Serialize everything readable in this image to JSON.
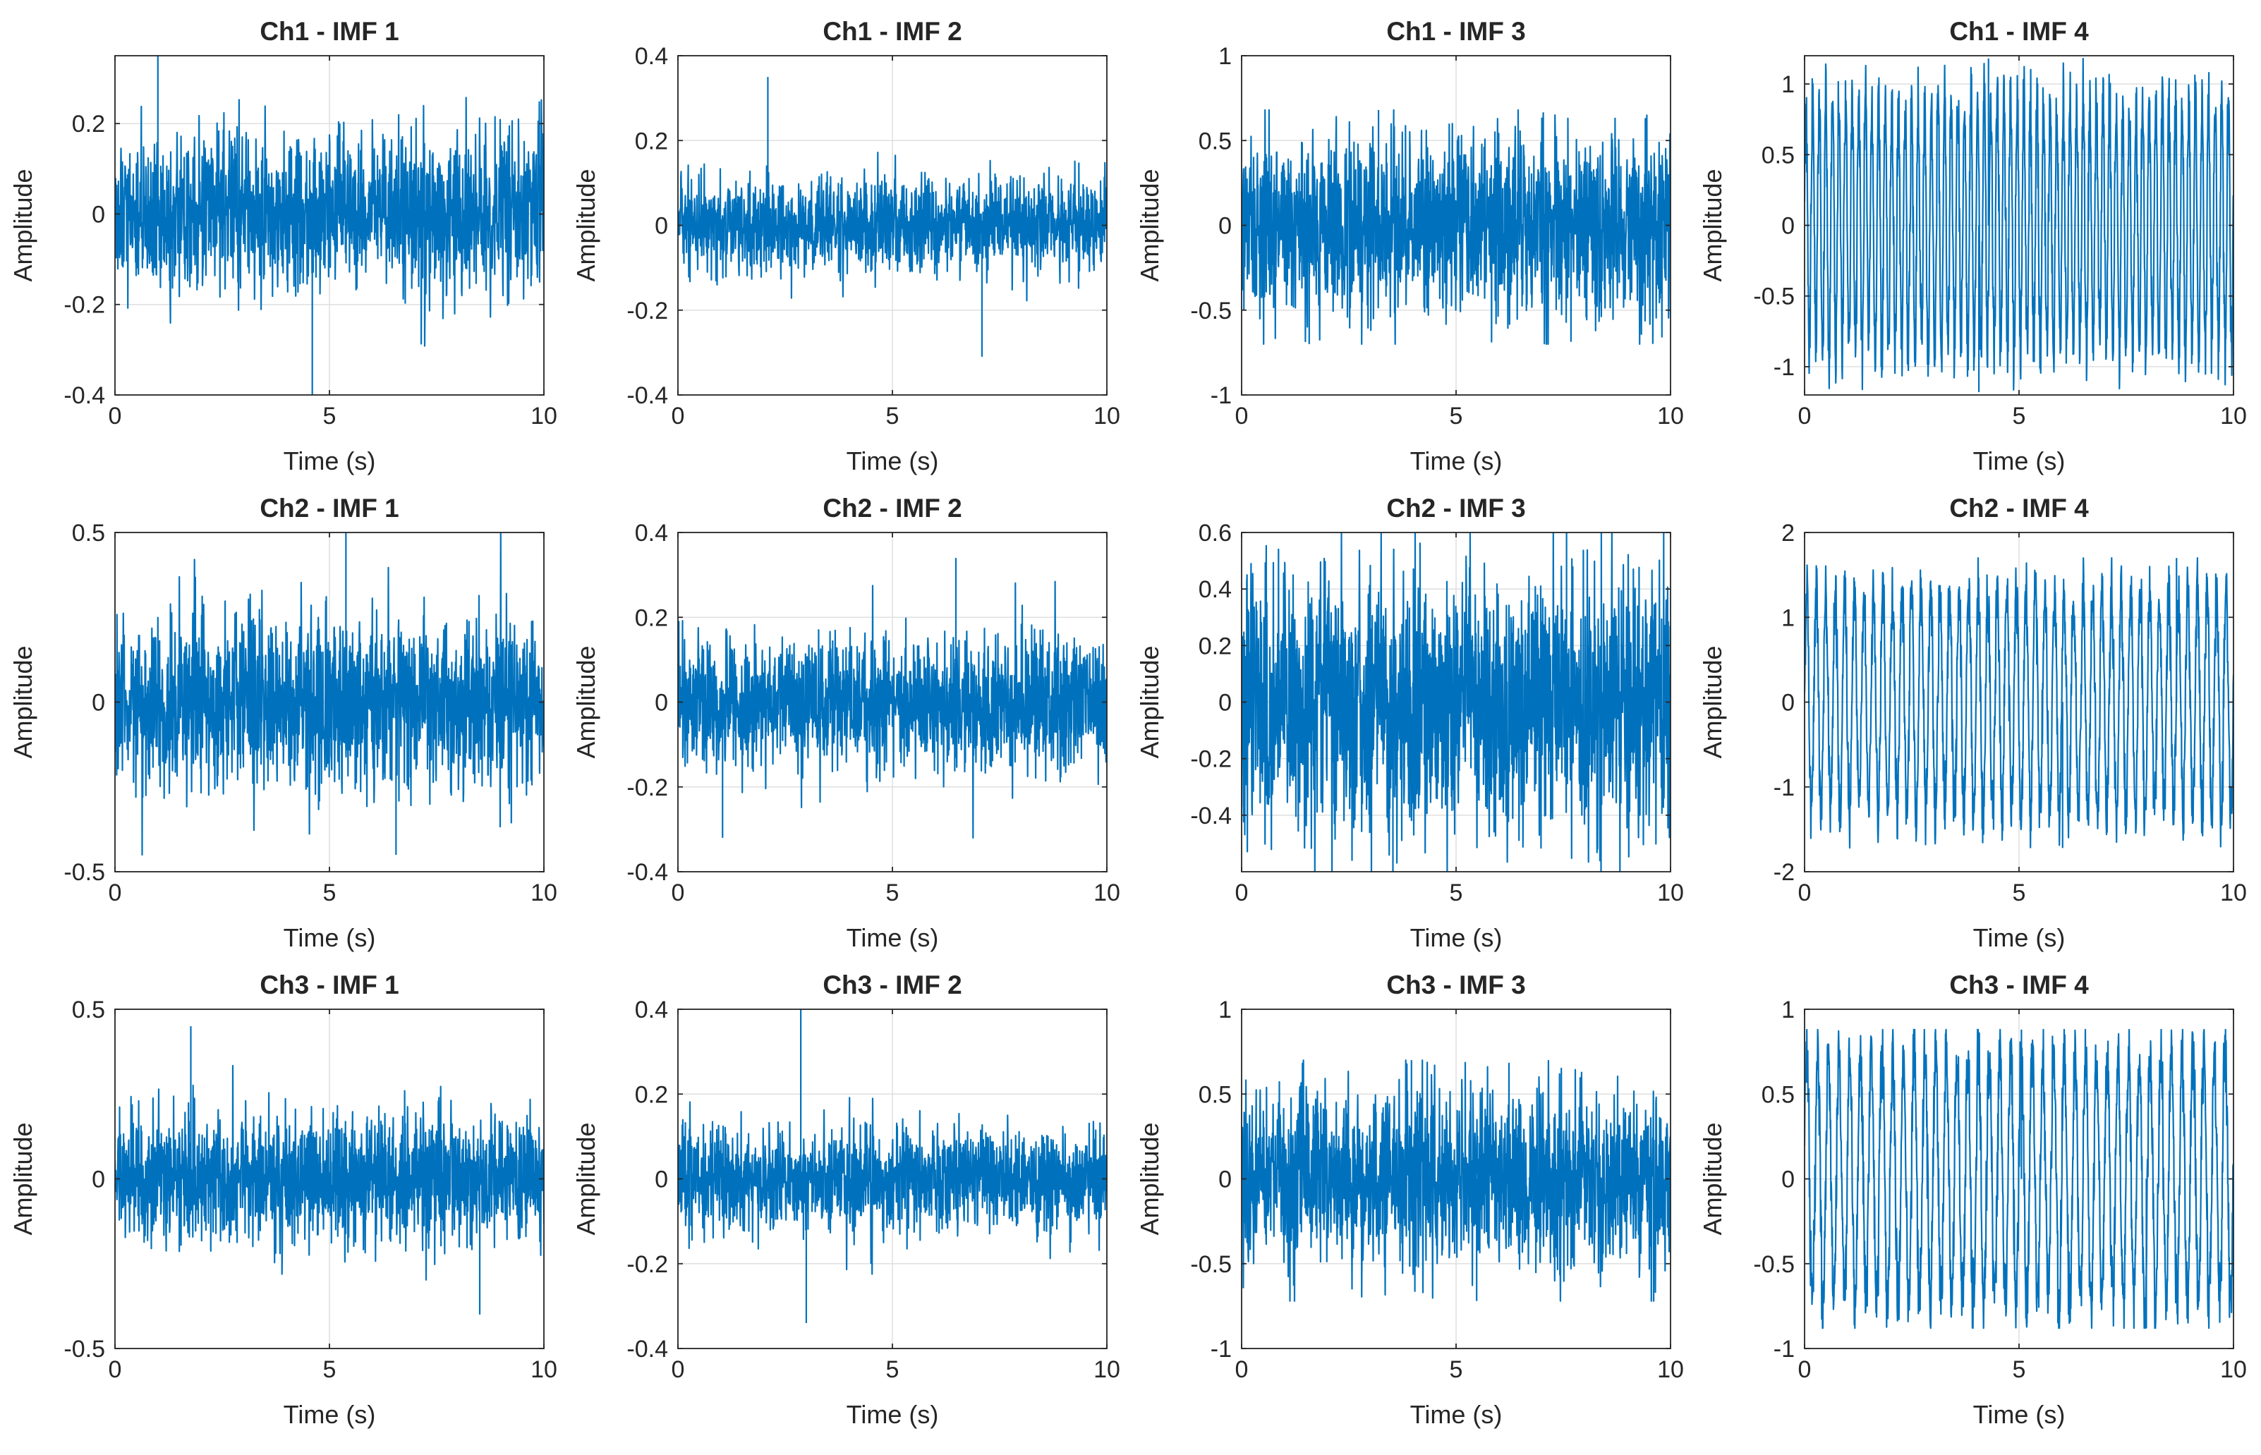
{
  "figure": {
    "colors": {
      "line": "#0072BD",
      "axes": "#262626",
      "grid": "#DFDFDF",
      "background": "#FFFFFF"
    }
  },
  "chart_data": [
    {
      "type": "line",
      "title": "Ch1 - IMF 1",
      "xlabel": "Time (s)",
      "ylabel": "Amplitude",
      "xlim": [
        0,
        10
      ],
      "ylim": [
        -0.4,
        0.35
      ],
      "xticks": [
        0,
        5,
        10
      ],
      "xtick_labels": [
        "0",
        "5",
        "10"
      ],
      "yticks": [
        -0.4,
        -0.2,
        0,
        0.2
      ],
      "ytick_labels": [
        "-0.4",
        "-0.2",
        "0",
        "0.2"
      ],
      "grid": true,
      "series": [
        {
          "name": "IMF 1",
          "envelope": 0.16,
          "extreme_min": -0.4,
          "extreme_max": 0.35,
          "freq_hz": null
        }
      ]
    },
    {
      "type": "line",
      "title": "Ch1 - IMF 2",
      "xlabel": "Time (s)",
      "ylabel": "Amplitude",
      "xlim": [
        0,
        10
      ],
      "ylim": [
        -0.4,
        0.4
      ],
      "xticks": [
        0,
        5,
        10
      ],
      "xtick_labels": [
        "0",
        "5",
        "10"
      ],
      "yticks": [
        -0.4,
        -0.2,
        0,
        0.2,
        0.4
      ],
      "ytick_labels": [
        "-0.4",
        "-0.2",
        "0",
        "0.2",
        "0.4"
      ],
      "grid": true,
      "series": [
        {
          "name": "IMF 2",
          "envelope": 0.1,
          "extreme_min": -0.31,
          "extreme_max": 0.35,
          "freq_hz": null
        }
      ]
    },
    {
      "type": "line",
      "title": "Ch1 - IMF 3",
      "xlabel": "Time (s)",
      "ylabel": "Amplitude",
      "xlim": [
        0,
        10
      ],
      "ylim": [
        -1,
        1
      ],
      "xticks": [
        0,
        5,
        10
      ],
      "xtick_labels": [
        "0",
        "5",
        "10"
      ],
      "yticks": [
        -1,
        -0.5,
        0,
        0.5,
        1
      ],
      "ytick_labels": [
        "-1",
        "-0.5",
        "0",
        "0.5",
        "1"
      ],
      "grid": true,
      "series": [
        {
          "name": "IMF 3",
          "envelope": 0.5,
          "extreme_min": -0.7,
          "extreme_max": 0.68,
          "freq_hz": null
        }
      ]
    },
    {
      "type": "line",
      "title": "Ch1 - IMF 4",
      "xlabel": "Time (s)",
      "ylabel": "Amplitude",
      "xlim": [
        0,
        10
      ],
      "ylim": [
        -1.2,
        1.2
      ],
      "xticks": [
        0,
        5,
        10
      ],
      "xtick_labels": [
        "0",
        "5",
        "10"
      ],
      "yticks": [
        -1,
        -0.5,
        0,
        0.5,
        1
      ],
      "ytick_labels": [
        "-1",
        "-0.5",
        "0",
        "0.5",
        "1"
      ],
      "grid": true,
      "series": [
        {
          "name": "IMF 4",
          "envelope": 0.95,
          "extreme_min": -1.18,
          "extreme_max": 1.18,
          "freq_hz": 6.5
        }
      ]
    },
    {
      "type": "line",
      "title": "Ch2 - IMF 1",
      "xlabel": "Time (s)",
      "ylabel": "Amplitude",
      "xlim": [
        0,
        10
      ],
      "ylim": [
        -0.5,
        0.5
      ],
      "xticks": [
        0,
        5,
        10
      ],
      "xtick_labels": [
        "0",
        "5",
        "10"
      ],
      "yticks": [
        -0.5,
        0,
        0.5
      ],
      "ytick_labels": [
        "-0.5",
        "0",
        "0.5"
      ],
      "grid": true,
      "series": [
        {
          "name": "IMF 1",
          "envelope": 0.24,
          "extreme_min": -0.45,
          "extreme_max": 0.5,
          "freq_hz": null
        }
      ]
    },
    {
      "type": "line",
      "title": "Ch2 - IMF 2",
      "xlabel": "Time (s)",
      "ylabel": "Amplitude",
      "xlim": [
        0,
        10
      ],
      "ylim": [
        -0.4,
        0.4
      ],
      "xticks": [
        0,
        5,
        10
      ],
      "xtick_labels": [
        "0",
        "5",
        "10"
      ],
      "yticks": [
        -0.4,
        -0.2,
        0,
        0.2,
        0.4
      ],
      "ytick_labels": [
        "-0.4",
        "-0.2",
        "0",
        "0.2",
        "0.4"
      ],
      "grid": true,
      "series": [
        {
          "name": "IMF 2",
          "envelope": 0.14,
          "extreme_min": -0.32,
          "extreme_max": 0.34,
          "freq_hz": null
        }
      ]
    },
    {
      "type": "line",
      "title": "Ch2 - IMF 3",
      "xlabel": "Time (s)",
      "ylabel": "Amplitude",
      "xlim": [
        0,
        10
      ],
      "ylim": [
        -0.6,
        0.6
      ],
      "xticks": [
        0,
        5,
        10
      ],
      "xtick_labels": [
        "0",
        "5",
        "10"
      ],
      "yticks": [
        -0.4,
        -0.2,
        0,
        0.2,
        0.4,
        0.6
      ],
      "ytick_labels": [
        "-0.4",
        "-0.2",
        "0",
        "0.2",
        "0.4",
        "0.6"
      ],
      "grid": true,
      "series": [
        {
          "name": "IMF 3",
          "envelope": 0.42,
          "extreme_min": -0.6,
          "extreme_max": 0.6,
          "freq_hz": null
        }
      ]
    },
    {
      "type": "line",
      "title": "Ch2 - IMF 4",
      "xlabel": "Time (s)",
      "ylabel": "Amplitude",
      "xlim": [
        0,
        10
      ],
      "ylim": [
        -2,
        2
      ],
      "xticks": [
        0,
        5,
        10
      ],
      "xtick_labels": [
        "0",
        "5",
        "10"
      ],
      "yticks": [
        -2,
        -1,
        0,
        1,
        2
      ],
      "ytick_labels": [
        "-2",
        "-1",
        "0",
        "1",
        "2"
      ],
      "grid": true,
      "series": [
        {
          "name": "IMF 4",
          "envelope": 1.4,
          "extreme_min": -1.72,
          "extreme_max": 1.7,
          "freq_hz": 4.5
        }
      ]
    },
    {
      "type": "line",
      "title": "Ch3 - IMF 1",
      "xlabel": "Time (s)",
      "ylabel": "Amplitude",
      "xlim": [
        0,
        10
      ],
      "ylim": [
        -0.5,
        0.5
      ],
      "xticks": [
        0,
        5,
        10
      ],
      "xtick_labels": [
        "0",
        "5",
        "10"
      ],
      "yticks": [
        -0.5,
        0,
        0.5
      ],
      "ytick_labels": [
        "-0.5",
        "0",
        "0.5"
      ],
      "grid": true,
      "series": [
        {
          "name": "IMF 1",
          "envelope": 0.17,
          "extreme_min": -0.4,
          "extreme_max": 0.45,
          "freq_hz": null
        }
      ]
    },
    {
      "type": "line",
      "title": "Ch3 - IMF 2",
      "xlabel": "Time (s)",
      "ylabel": "Amplitude",
      "xlim": [
        0,
        10
      ],
      "ylim": [
        -0.4,
        0.4
      ],
      "xticks": [
        0,
        5,
        10
      ],
      "xtick_labels": [
        "0",
        "5",
        "10"
      ],
      "yticks": [
        -0.4,
        -0.2,
        0,
        0.2,
        0.4
      ],
      "ytick_labels": [
        "-0.4",
        "-0.2",
        "0",
        "0.2",
        "0.4"
      ],
      "grid": true,
      "series": [
        {
          "name": "IMF 2",
          "envelope": 0.11,
          "extreme_min": -0.34,
          "extreme_max": 0.4,
          "freq_hz": null
        }
      ]
    },
    {
      "type": "line",
      "title": "Ch3 - IMF 3",
      "xlabel": "Time (s)",
      "ylabel": "Amplitude",
      "xlim": [
        0,
        10
      ],
      "ylim": [
        -1,
        1
      ],
      "xticks": [
        0,
        5,
        10
      ],
      "xtick_labels": [
        "0",
        "5",
        "10"
      ],
      "yticks": [
        -1,
        -0.5,
        0,
        0.5,
        1
      ],
      "ytick_labels": [
        "-1",
        "-0.5",
        "0",
        "0.5",
        "1"
      ],
      "grid": true,
      "series": [
        {
          "name": "IMF 3",
          "envelope": 0.5,
          "extreme_min": -0.72,
          "extreme_max": 0.7,
          "freq_hz": null
        }
      ]
    },
    {
      "type": "line",
      "title": "Ch3 - IMF 4",
      "xlabel": "Time (s)",
      "ylabel": "Amplitude",
      "xlim": [
        0,
        10
      ],
      "ylim": [
        -1,
        1
      ],
      "xticks": [
        0,
        5,
        10
      ],
      "xtick_labels": [
        "0",
        "5",
        "10"
      ],
      "yticks": [
        -1,
        -0.5,
        0,
        0.5,
        1
      ],
      "ytick_labels": [
        "-1",
        "-0.5",
        "0",
        "0.5",
        "1"
      ],
      "grid": true,
      "series": [
        {
          "name": "IMF 4",
          "envelope": 0.78,
          "extreme_min": -0.88,
          "extreme_max": 0.88,
          "freq_hz": 4.0
        }
      ]
    }
  ]
}
